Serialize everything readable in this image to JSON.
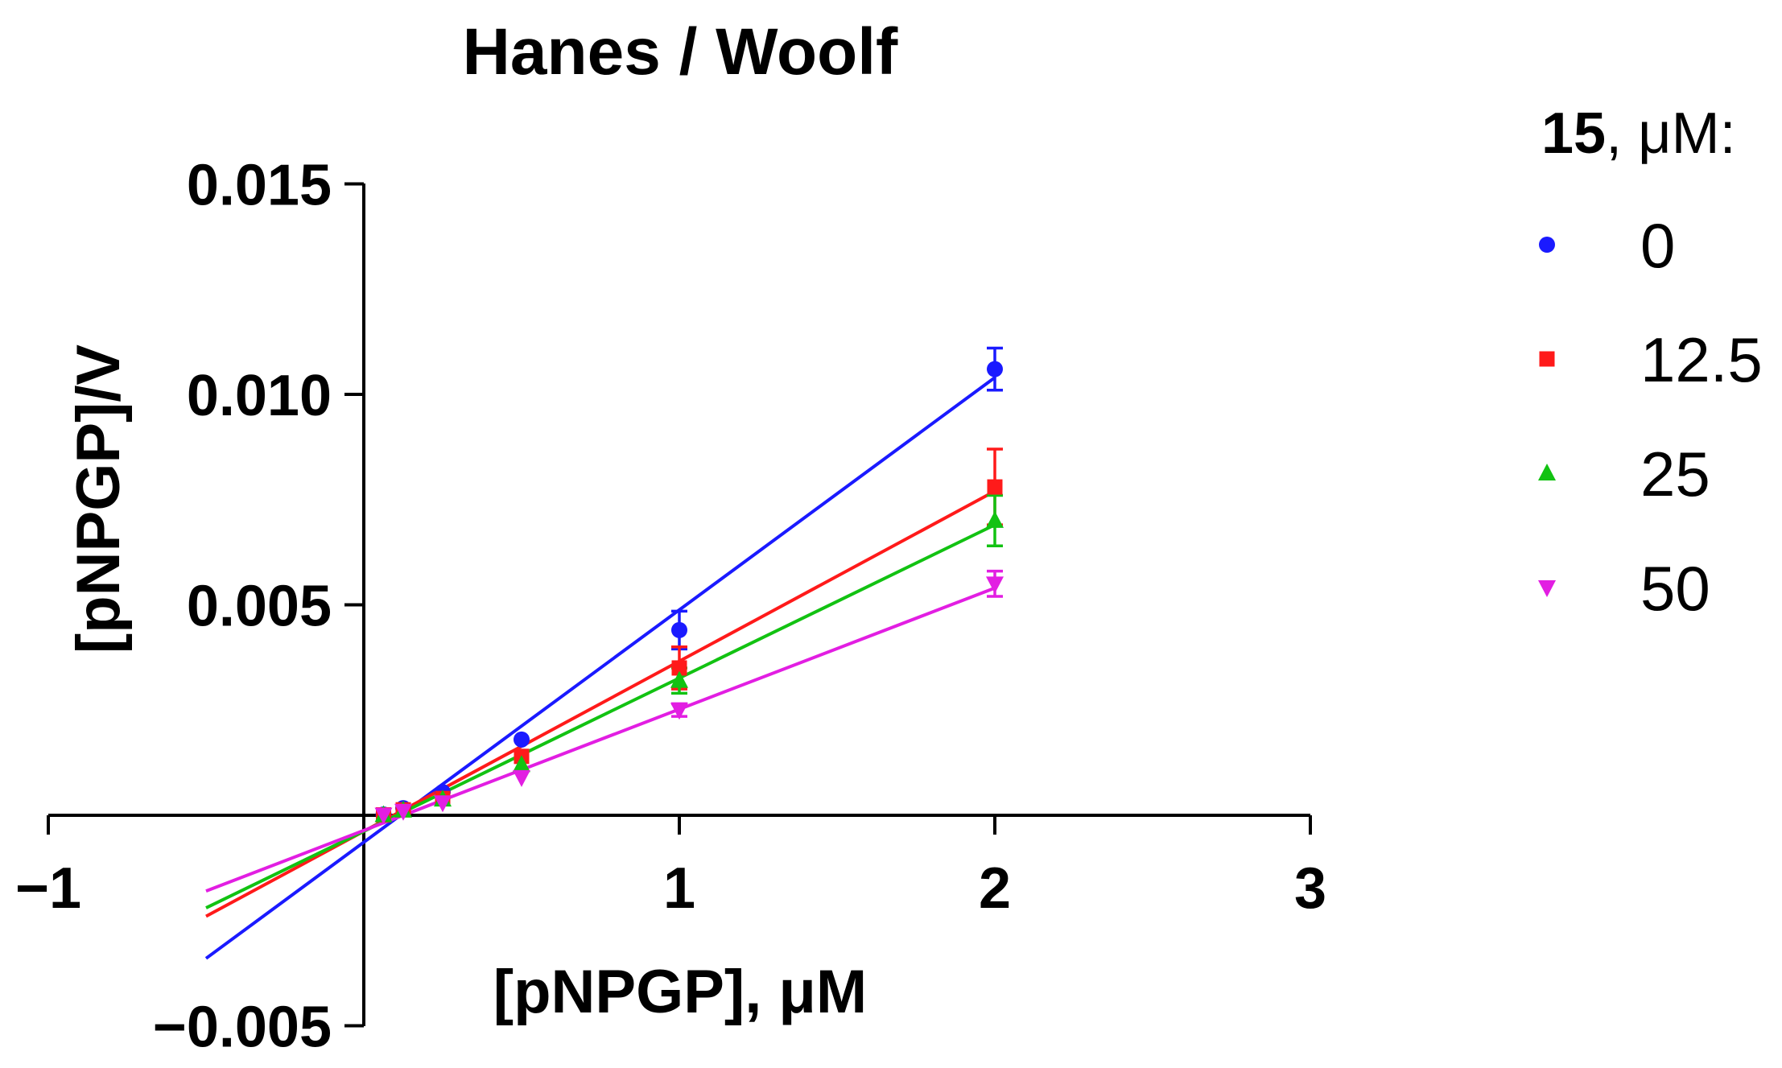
{
  "chart_data": {
    "type": "scatter",
    "title": "Hanes / Woolf",
    "xlabel": "[pNPGP], μM",
    "ylabel": "[pNPGP]/V",
    "xlim": [
      -1,
      3
    ],
    "ylim": [
      -0.005,
      0.015
    ],
    "xticks": [
      -1,
      1,
      2,
      3
    ],
    "xtick_labels": [
      "−1",
      "1",
      "2",
      "3"
    ],
    "yticks": [
      -0.005,
      0.005,
      0.01,
      0.015
    ],
    "ytick_labels": [
      "−0.005",
      "0.005",
      "0.010",
      "0.015"
    ],
    "grid": false,
    "legend_title_bold": "15",
    "legend_title_rest": ", μM:",
    "legend_position": "right",
    "series": [
      {
        "name": "0",
        "color": "#1a1aff",
        "marker": "circle",
        "x": [
          0.0625,
          0.125,
          0.25,
          0.5,
          1,
          2
        ],
        "y": [
          2e-05,
          0.00017,
          0.00055,
          0.0018,
          0.0044,
          0.0106
        ],
        "err": [
          5e-05,
          5e-05,
          8e-05,
          0.00012,
          0.00045,
          0.0005
        ],
        "fit": {
          "x": [
            -0.5,
            2
          ],
          "y": [
            -0.0034,
            0.0104
          ]
        }
      },
      {
        "name": "12.5",
        "color": "#ff1a1a",
        "marker": "square",
        "x": [
          0.0625,
          0.125,
          0.25,
          0.5,
          1,
          2
        ],
        "y": [
          1e-05,
          0.00013,
          0.0004,
          0.0014,
          0.0035,
          0.0078
        ],
        "err": [
          5e-05,
          5e-05,
          8e-05,
          0.00012,
          0.0005,
          0.0009
        ],
        "fit": {
          "x": [
            -0.5,
            2
          ],
          "y": [
            -0.0024,
            0.0077
          ]
        }
      },
      {
        "name": "25",
        "color": "#12c212",
        "marker": "triangle-up",
        "x": [
          0.0625,
          0.125,
          0.25,
          0.5,
          1,
          2
        ],
        "y": [
          1e-05,
          0.00012,
          0.00038,
          0.0012,
          0.0032,
          0.007
        ],
        "err": [
          5e-05,
          5e-05,
          8e-05,
          0.00012,
          0.0003,
          0.0006
        ],
        "fit": {
          "x": [
            -0.5,
            2
          ],
          "y": [
            -0.0022,
            0.0069
          ]
        }
      },
      {
        "name": "50",
        "color": "#e21ee2",
        "marker": "triangle-down",
        "x": [
          0.0625,
          0.125,
          0.25,
          0.5,
          1,
          2
        ],
        "y": [
          1e-05,
          0.0001,
          0.0003,
          0.0009,
          0.0025,
          0.0055
        ],
        "err": [
          4e-05,
          4e-05,
          6e-05,
          0.0001,
          0.00015,
          0.0003
        ],
        "fit": {
          "x": [
            -0.5,
            2
          ],
          "y": [
            -0.0018,
            0.0054
          ]
        }
      }
    ]
  }
}
